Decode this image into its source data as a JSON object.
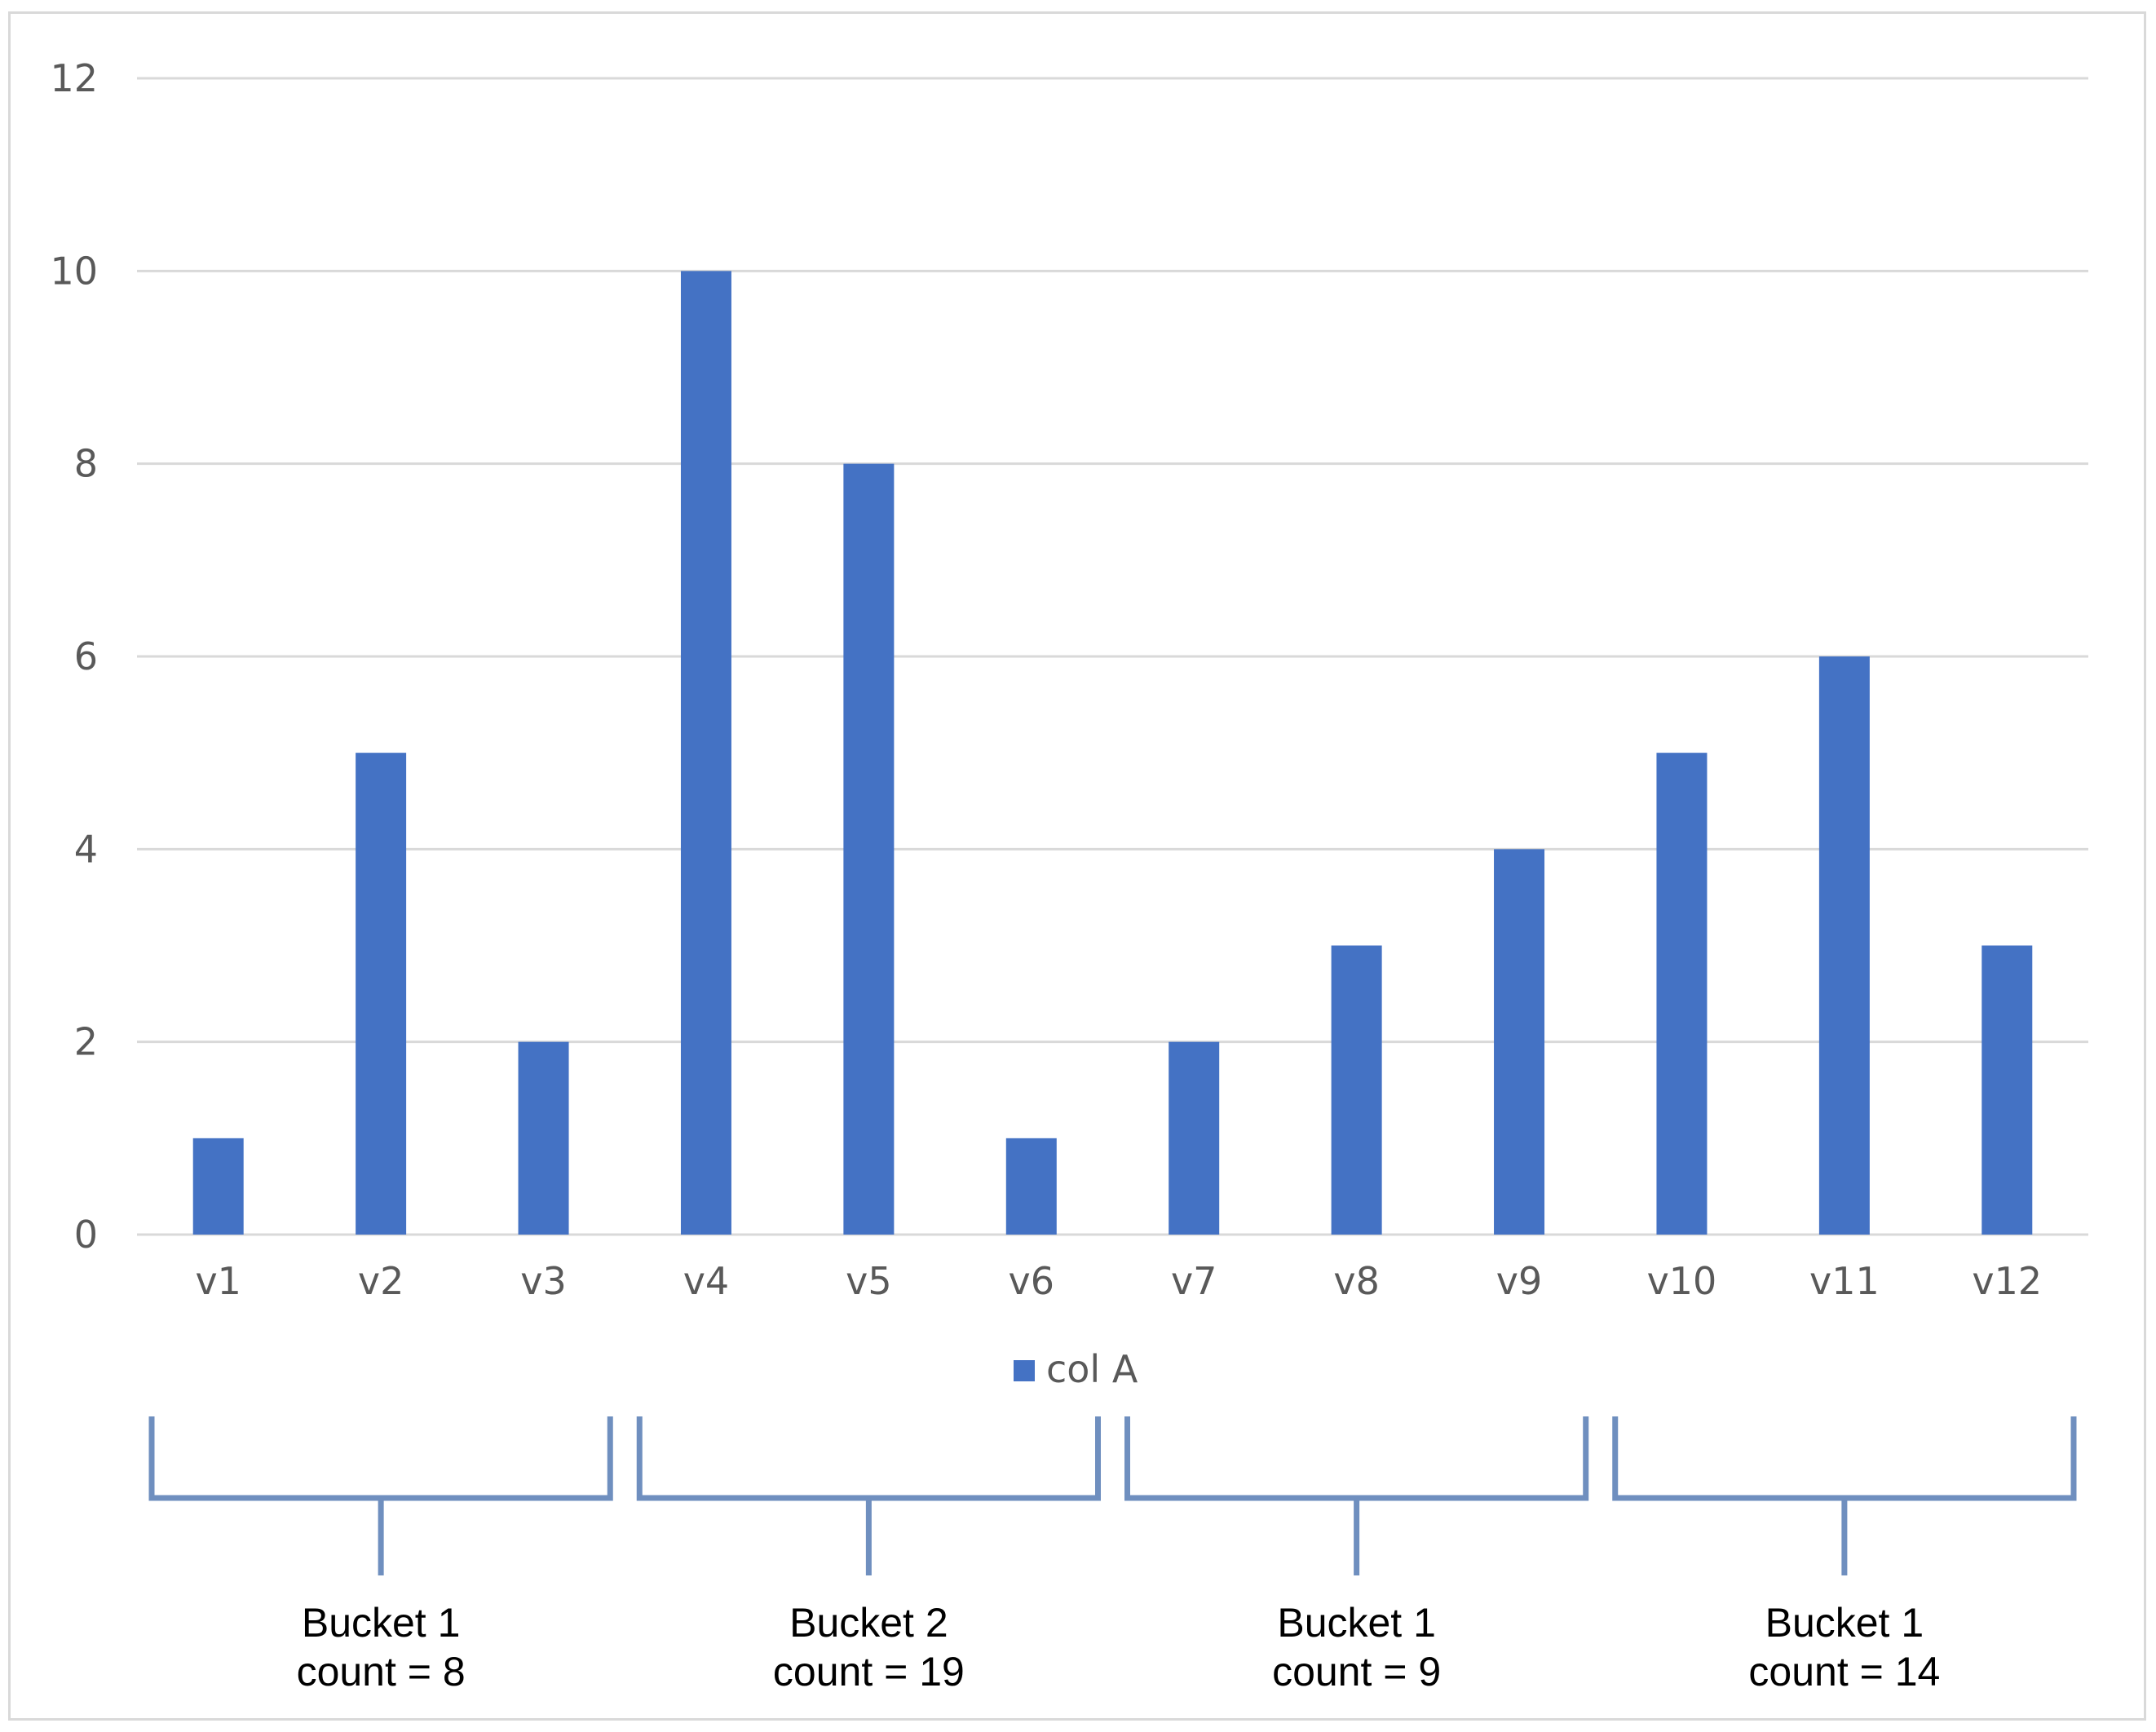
{
  "chart_data": {
    "type": "bar",
    "categories": [
      "v1",
      "v2",
      "v3",
      "v4",
      "v5",
      "v6",
      "v7",
      "v8",
      "v9",
      "v10",
      "v11",
      "v12"
    ],
    "series": [
      {
        "name": "col A",
        "values": [
          1,
          5,
          2,
          10,
          8,
          1,
          2,
          3,
          4,
          5,
          6,
          3
        ]
      }
    ],
    "yticks": [
      "0",
      "2",
      "4",
      "6",
      "8",
      "10",
      "12"
    ],
    "ylim": [
      0,
      12
    ],
    "grid": true,
    "legend": "bottom-center",
    "colors": {
      "bar": "#4472C4",
      "grid": "#d9d9d9",
      "bracket": "#6F8FBF"
    },
    "buckets": [
      {
        "from": "v1",
        "to": "v3",
        "line1": "Bucket 1",
        "line2": "count = 8"
      },
      {
        "from": "v4",
        "to": "v6",
        "line1": "Bucket 2",
        "line2": "count = 19"
      },
      {
        "from": "v7",
        "to": "v9",
        "line1": "Bucket 1",
        "line2": "count = 9"
      },
      {
        "from": "v10",
        "to": "v12",
        "line1": "Bucket 1",
        "line2": "count = 14"
      }
    ]
  }
}
